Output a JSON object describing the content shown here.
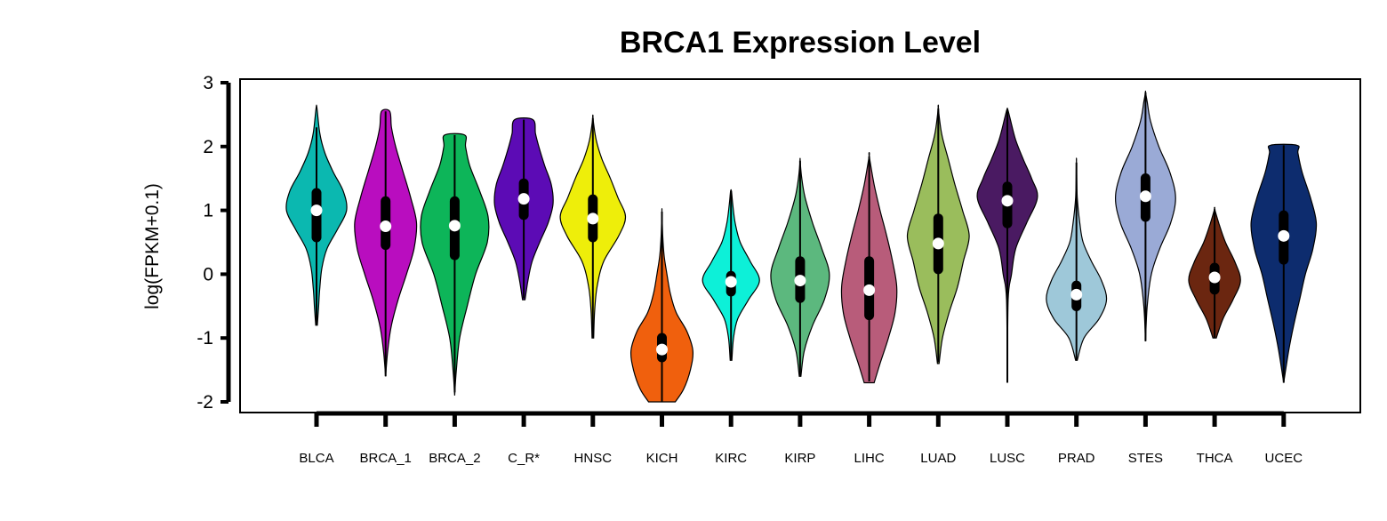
{
  "chart_data": {
    "type": "violin",
    "title": "BRCA1 Expression Level",
    "xlabel": "",
    "ylabel": "log(FPKM+0.1)",
    "ylim": [
      -2,
      3
    ],
    "yticks": [
      -2,
      -1,
      0,
      1,
      2,
      3
    ],
    "grid": false,
    "legend": "none",
    "categories": [
      "BLCA",
      "BRCA_1",
      "BRCA_2",
      "C_R*",
      "HNSC",
      "KICH",
      "KIRC",
      "KIRP",
      "LIHC",
      "LUAD",
      "LUSC",
      "PRAD",
      "STES",
      "THCA",
      "UCEC"
    ],
    "series": [
      {
        "color": "#0BB8B0",
        "min": -0.8,
        "max": 2.6,
        "q1": 0.5,
        "median": 1.0,
        "q3": 1.35,
        "wlo": -0.8,
        "whi": 2.3,
        "density": [
          [
            -0.8,
            0.02
          ],
          [
            -0.5,
            0.05
          ],
          [
            -0.2,
            0.08
          ],
          [
            0.1,
            0.13
          ],
          [
            0.4,
            0.25
          ],
          [
            0.7,
            0.5
          ],
          [
            1.0,
            0.72
          ],
          [
            1.3,
            0.64
          ],
          [
            1.6,
            0.4
          ],
          [
            1.9,
            0.2
          ],
          [
            2.2,
            0.08
          ],
          [
            2.6,
            0.01
          ]
        ]
      },
      {
        "color": "#B90DBF",
        "min": -1.6,
        "max": 2.55,
        "q1": 0.38,
        "median": 0.75,
        "q3": 1.22,
        "wlo": -1.6,
        "whi": 2.55,
        "density": [
          [
            -1.6,
            0.0
          ],
          [
            -1.2,
            0.05
          ],
          [
            -0.8,
            0.14
          ],
          [
            -0.4,
            0.3
          ],
          [
            0.0,
            0.5
          ],
          [
            0.4,
            0.68
          ],
          [
            0.8,
            0.74
          ],
          [
            1.2,
            0.6
          ],
          [
            1.6,
            0.42
          ],
          [
            2.0,
            0.24
          ],
          [
            2.3,
            0.14
          ],
          [
            2.55,
            0.1
          ]
        ]
      },
      {
        "color": "#0DB559",
        "min": -1.9,
        "max": 2.18,
        "q1": 0.22,
        "median": 0.76,
        "q3": 1.22,
        "wlo": -1.85,
        "whi": 2.18,
        "density": [
          [
            -1.9,
            0.0
          ],
          [
            -1.5,
            0.04
          ],
          [
            -1.0,
            0.12
          ],
          [
            -0.5,
            0.3
          ],
          [
            0.0,
            0.5
          ],
          [
            0.5,
            0.78
          ],
          [
            0.9,
            0.8
          ],
          [
            1.3,
            0.6
          ],
          [
            1.7,
            0.36
          ],
          [
            2.0,
            0.26
          ],
          [
            2.18,
            0.24
          ]
        ]
      },
      {
        "color": "#5C0BB5",
        "min": -0.4,
        "max": 2.42,
        "q1": 0.85,
        "median": 1.18,
        "q3": 1.5,
        "wlo": -0.38,
        "whi": 2.42,
        "density": [
          [
            -0.4,
            0.03
          ],
          [
            -0.1,
            0.1
          ],
          [
            0.2,
            0.2
          ],
          [
            0.5,
            0.38
          ],
          [
            0.8,
            0.58
          ],
          [
            1.1,
            0.7
          ],
          [
            1.4,
            0.66
          ],
          [
            1.7,
            0.5
          ],
          [
            2.0,
            0.36
          ],
          [
            2.2,
            0.28
          ],
          [
            2.42,
            0.22
          ]
        ]
      },
      {
        "color": "#EEEE0A",
        "min": -1.0,
        "max": 2.45,
        "q1": 0.5,
        "median": 0.87,
        "q3": 1.25,
        "wlo": -1.0,
        "whi": 2.45,
        "density": [
          [
            -1.0,
            0.02
          ],
          [
            -0.6,
            0.04
          ],
          [
            -0.2,
            0.1
          ],
          [
            0.2,
            0.26
          ],
          [
            0.6,
            0.62
          ],
          [
            0.9,
            0.78
          ],
          [
            1.2,
            0.6
          ],
          [
            1.5,
            0.42
          ],
          [
            1.8,
            0.22
          ],
          [
            2.1,
            0.08
          ],
          [
            2.45,
            0.0
          ]
        ]
      },
      {
        "color": "#F0600D",
        "min": -2.0,
        "max": 0.98,
        "q1": -1.38,
        "median": -1.18,
        "q3": -0.92,
        "wlo": -2.0,
        "whi": 0.98,
        "density": [
          [
            -2.0,
            0.32
          ],
          [
            -1.8,
            0.52
          ],
          [
            -1.5,
            0.68
          ],
          [
            -1.2,
            0.74
          ],
          [
            -0.9,
            0.6
          ],
          [
            -0.6,
            0.34
          ],
          [
            -0.3,
            0.2
          ],
          [
            0.0,
            0.12
          ],
          [
            0.3,
            0.05
          ],
          [
            0.6,
            0.02
          ],
          [
            0.98,
            0.0
          ]
        ]
      },
      {
        "color": "#0DF0D8",
        "min": -1.35,
        "max": 1.3,
        "q1": -0.35,
        "median": -0.12,
        "q3": 0.05,
        "wlo": -1.35,
        "whi": 1.3,
        "density": [
          [
            -1.35,
            0.02
          ],
          [
            -1.0,
            0.06
          ],
          [
            -0.7,
            0.16
          ],
          [
            -0.4,
            0.42
          ],
          [
            -0.1,
            0.68
          ],
          [
            0.2,
            0.46
          ],
          [
            0.5,
            0.22
          ],
          [
            0.8,
            0.1
          ],
          [
            1.1,
            0.04
          ],
          [
            1.3,
            0.01
          ]
        ]
      },
      {
        "color": "#5CB87E",
        "min": -1.6,
        "max": 1.78,
        "q1": -0.45,
        "median": -0.1,
        "q3": 0.28,
        "wlo": -1.6,
        "whi": 1.78,
        "density": [
          [
            -1.6,
            0.02
          ],
          [
            -1.2,
            0.1
          ],
          [
            -0.8,
            0.3
          ],
          [
            -0.4,
            0.58
          ],
          [
            0.0,
            0.7
          ],
          [
            0.4,
            0.52
          ],
          [
            0.8,
            0.3
          ],
          [
            1.2,
            0.12
          ],
          [
            1.5,
            0.04
          ],
          [
            1.78,
            0.0
          ]
        ]
      },
      {
        "color": "#B85C7A",
        "min": -1.7,
        "max": 1.85,
        "q1": -0.72,
        "median": -0.25,
        "q3": 0.28,
        "wlo": -1.68,
        "whi": 1.85,
        "density": [
          [
            -1.7,
            0.12
          ],
          [
            -1.4,
            0.26
          ],
          [
            -1.0,
            0.46
          ],
          [
            -0.6,
            0.62
          ],
          [
            -0.2,
            0.66
          ],
          [
            0.2,
            0.56
          ],
          [
            0.6,
            0.42
          ],
          [
            1.0,
            0.26
          ],
          [
            1.4,
            0.12
          ],
          [
            1.85,
            0.0
          ]
        ]
      },
      {
        "color": "#9ABD5C",
        "min": -1.4,
        "max": 2.6,
        "q1": 0.0,
        "median": 0.48,
        "q3": 0.95,
        "wlo": -1.38,
        "whi": 2.6,
        "density": [
          [
            -1.4,
            0.02
          ],
          [
            -1.0,
            0.1
          ],
          [
            -0.6,
            0.26
          ],
          [
            -0.2,
            0.46
          ],
          [
            0.2,
            0.6
          ],
          [
            0.6,
            0.74
          ],
          [
            1.0,
            0.58
          ],
          [
            1.4,
            0.4
          ],
          [
            1.8,
            0.24
          ],
          [
            2.2,
            0.08
          ],
          [
            2.6,
            0.0
          ]
        ]
      },
      {
        "color": "#4A1A62",
        "min": -1.7,
        "max": 2.58,
        "q1": 0.72,
        "median": 1.15,
        "q3": 1.45,
        "wlo": -1.7,
        "whi": 2.58,
        "density": [
          [
            -1.7,
            0.0
          ],
          [
            -0.4,
            0.02
          ],
          [
            0.0,
            0.1
          ],
          [
            0.4,
            0.2
          ],
          [
            0.8,
            0.46
          ],
          [
            1.2,
            0.72
          ],
          [
            1.5,
            0.58
          ],
          [
            1.8,
            0.38
          ],
          [
            2.1,
            0.2
          ],
          [
            2.4,
            0.08
          ],
          [
            2.58,
            0.01
          ]
        ]
      },
      {
        "color": "#9EC8D9",
        "min": -1.35,
        "max": 1.75,
        "q1": -0.58,
        "median": -0.32,
        "q3": -0.1,
        "wlo": -1.35,
        "whi": 1.75,
        "density": [
          [
            -1.35,
            0.02
          ],
          [
            -1.0,
            0.18
          ],
          [
            -0.7,
            0.54
          ],
          [
            -0.4,
            0.72
          ],
          [
            -0.1,
            0.6
          ],
          [
            0.2,
            0.36
          ],
          [
            0.5,
            0.16
          ],
          [
            0.8,
            0.08
          ],
          [
            1.2,
            0.02
          ],
          [
            1.75,
            0.0
          ]
        ]
      },
      {
        "color": "#9AAAD6",
        "min": -1.05,
        "max": 2.85,
        "q1": 0.82,
        "median": 1.22,
        "q3": 1.58,
        "wlo": -1.05,
        "whi": 2.85,
        "density": [
          [
            -1.05,
            0.0
          ],
          [
            -0.5,
            0.04
          ],
          [
            0.0,
            0.14
          ],
          [
            0.4,
            0.34
          ],
          [
            0.8,
            0.6
          ],
          [
            1.2,
            0.72
          ],
          [
            1.6,
            0.58
          ],
          [
            2.0,
            0.32
          ],
          [
            2.4,
            0.12
          ],
          [
            2.7,
            0.04
          ],
          [
            2.85,
            0.0
          ]
        ]
      },
      {
        "color": "#6B2610",
        "min": -1.0,
        "max": 1.02,
        "q1": -0.32,
        "median": -0.05,
        "q3": 0.18,
        "wlo": -1.0,
        "whi": 1.02,
        "density": [
          [
            -1.0,
            0.04
          ],
          [
            -0.7,
            0.2
          ],
          [
            -0.4,
            0.44
          ],
          [
            -0.1,
            0.62
          ],
          [
            0.2,
            0.48
          ],
          [
            0.5,
            0.26
          ],
          [
            0.8,
            0.1
          ],
          [
            1.02,
            0.0
          ]
        ]
      },
      {
        "color": "#0D2C6E",
        "min": -1.7,
        "max": 2.02,
        "q1": 0.15,
        "median": 0.6,
        "q3": 1.0,
        "wlo": -1.7,
        "whi": 2.02,
        "density": [
          [
            -1.7,
            0.0
          ],
          [
            -1.2,
            0.12
          ],
          [
            -0.8,
            0.24
          ],
          [
            -0.4,
            0.38
          ],
          [
            0.0,
            0.52
          ],
          [
            0.4,
            0.7
          ],
          [
            0.8,
            0.78
          ],
          [
            1.2,
            0.64
          ],
          [
            1.6,
            0.44
          ],
          [
            1.9,
            0.34
          ],
          [
            2.02,
            0.32
          ]
        ]
      }
    ]
  }
}
